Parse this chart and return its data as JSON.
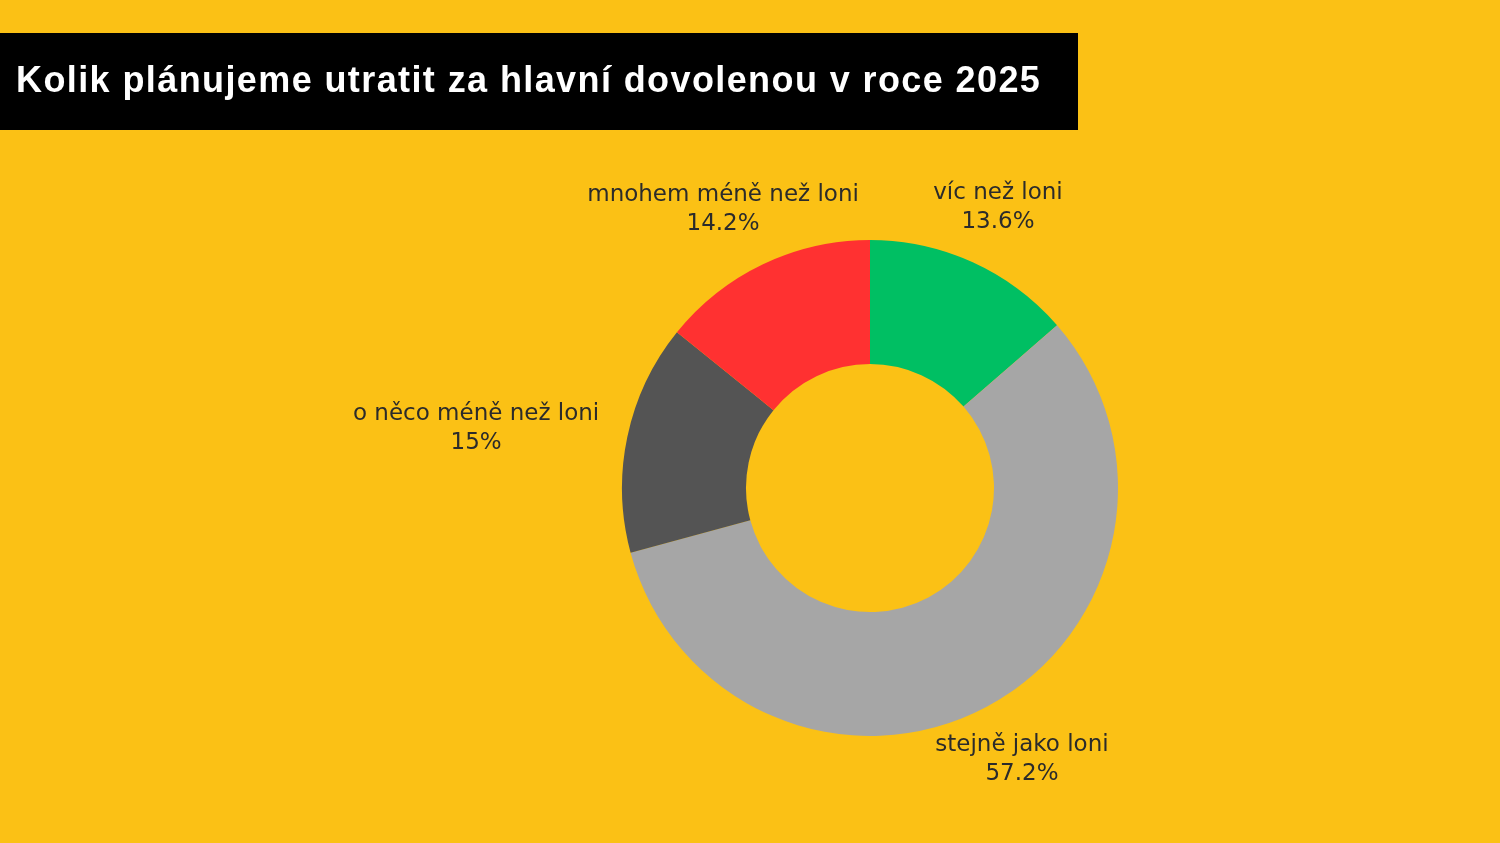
{
  "chart_data": {
    "type": "donut",
    "title": "Kolik plánujeme utratit za hlavní dovolenou v roce 2025",
    "categories": [
      "víc než loni",
      "stejně jako loni",
      "o něco méně než loni",
      "mnohem méně než loni"
    ],
    "values": [
      13.6,
      57.2,
      15,
      14.2
    ],
    "colors": [
      "#00bf63",
      "#a6a6a6",
      "#545454",
      "#ff3131"
    ],
    "value_labels": [
      "13.6%",
      "57.2%",
      "15%",
      "14.2%"
    ]
  }
}
